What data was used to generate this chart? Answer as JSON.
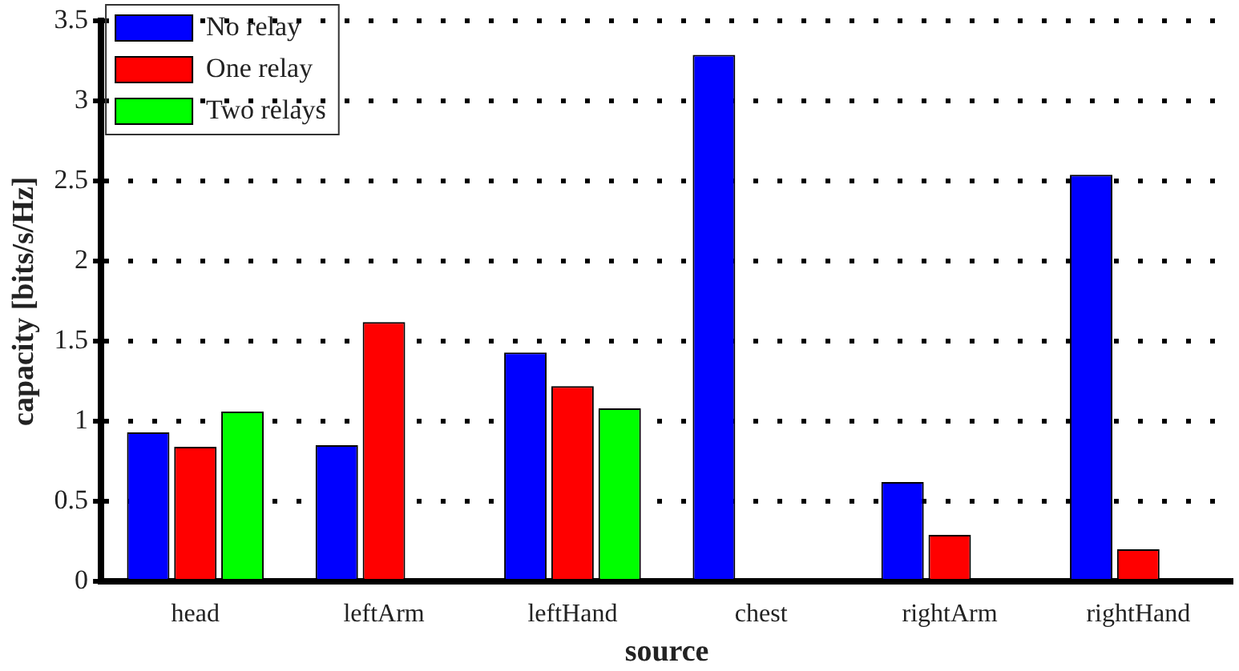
{
  "chart_data": {
    "type": "bar",
    "xlabel": "source",
    "ylabel": "capacity [bits/s/Hz]",
    "categories": [
      "head",
      "leftArm",
      "leftHand",
      "chest",
      "rightArm",
      "rightHand"
    ],
    "series": [
      {
        "name": "No relay",
        "color": "#0000ff",
        "values": [
          0.93,
          0.85,
          1.43,
          3.29,
          0.62,
          2.54
        ]
      },
      {
        "name": "One relay",
        "color": "#ff0000",
        "values": [
          0.84,
          1.62,
          1.22,
          null,
          0.29,
          0.2
        ]
      },
      {
        "name": "Two relays",
        "color": "#00ff00",
        "values": [
          1.06,
          null,
          1.08,
          null,
          null,
          null
        ]
      }
    ],
    "ylim": [
      0,
      3.5
    ],
    "yticks": [
      0,
      0.5,
      1,
      1.5,
      2,
      2.5,
      3,
      3.5
    ],
    "grid": "y",
    "legend": "top left"
  }
}
